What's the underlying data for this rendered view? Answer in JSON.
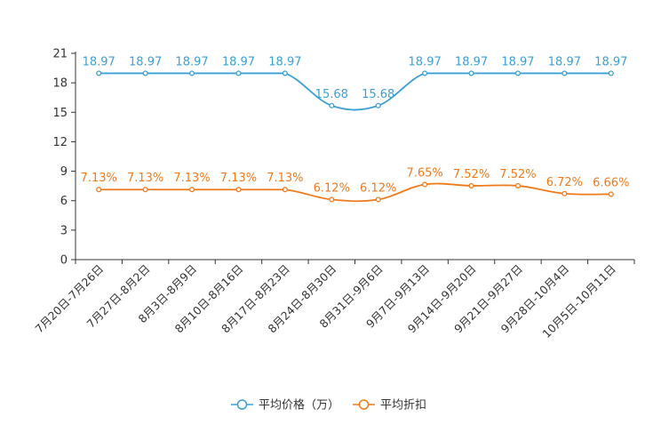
{
  "chart_data": {
    "type": "line",
    "categories": [
      "7月20日-7月26日",
      "7月27日-8月2日",
      "8月3日-8月9日",
      "8月10日-8月16日",
      "8月17日-8月23日",
      "8月24日-8月30日",
      "8月31日-9月6日",
      "9月7日-9月13日",
      "9月14日-9月20日",
      "9月21日-9月27日",
      "9月28日-10月4日",
      "10月5日-10月11日"
    ],
    "series": [
      {
        "name": "平均价格（万）",
        "color": "#3aa0d5",
        "values": [
          18.97,
          18.97,
          18.97,
          18.97,
          18.97,
          15.68,
          15.68,
          18.97,
          18.97,
          18.97,
          18.97,
          18.97
        ],
        "labels": [
          "18.97",
          "18.97",
          "18.97",
          "18.97",
          "18.97",
          "15.68",
          "15.68",
          "18.97",
          "18.97",
          "18.97",
          "18.97",
          "18.97"
        ]
      },
      {
        "name": "平均折扣",
        "color": "#f07a1a",
        "values": [
          7.13,
          7.13,
          7.13,
          7.13,
          7.13,
          6.12,
          6.12,
          7.65,
          7.52,
          7.52,
          6.72,
          6.66
        ],
        "labels": [
          "7.13%",
          "7.13%",
          "7.13%",
          "7.13%",
          "7.13%",
          "6.12%",
          "6.12%",
          "7.65%",
          "7.52%",
          "7.52%",
          "6.72%",
          "6.66%"
        ]
      }
    ],
    "yticks": [
      "0",
      "3",
      "6",
      "9",
      "12",
      "15",
      "18",
      "21"
    ],
    "ylim": [
      0,
      21
    ],
    "legend_position": "bottom-center",
    "title": "",
    "xlabel": "",
    "ylabel": ""
  }
}
